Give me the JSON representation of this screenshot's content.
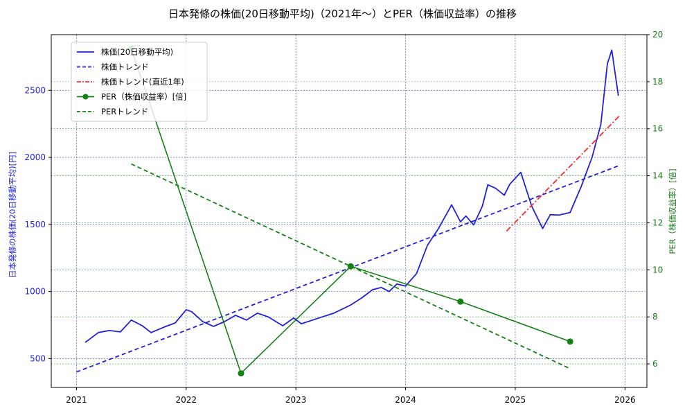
{
  "title": "日本発條の株価(20日移動平均)（2021年～）とPER（株価収益率）の推移",
  "axes": {
    "x_ticks": [
      "2021",
      "2022",
      "2023",
      "2024",
      "2025",
      "2026"
    ],
    "left_ylabel": "日本発條の株価(20日移動平均)[円]",
    "left_ticks": [
      "500",
      "1000",
      "1500",
      "2000",
      "2500"
    ],
    "right_ylabel": "PER（株価収益率）[倍]",
    "right_ticks": [
      "6",
      "8",
      "10",
      "12",
      "14",
      "16",
      "18",
      "20"
    ]
  },
  "legend": [
    {
      "label": "株価(20日移動平均)",
      "style": "solid",
      "color": "#1f1fe0"
    },
    {
      "label": "株価トレンド",
      "style": "dashed",
      "color": "#1f1fe0"
    },
    {
      "label": "株価トレンド(直近1年)",
      "style": "dashdot",
      "color": "#ff2a2a"
    },
    {
      "label": "PER（株価収益率）[倍]",
      "style": "solid-marker",
      "color": "#138013"
    },
    {
      "label": "PERトレンド",
      "style": "dashed",
      "color": "#138013"
    }
  ],
  "colors": {
    "price": "#1f1fe0",
    "price_trend": "#1f1fe0",
    "recent_trend": "#ff2a2a",
    "per": "#138013",
    "per_trend": "#138013",
    "grid_left": "#4444cc",
    "grid_right": "#3a9a3a"
  },
  "chart_data": {
    "type": "line",
    "title": "日本発條の株価(20日移動平均)（2021年～）とPER（株価収益率）の推移",
    "xlabel": "",
    "ylabel": "日本発條の株価(20日移動平均)[円]",
    "ylabel_right": "PER（株価収益率）[倍]",
    "xlim": [
      2020.77,
      2026.2
    ],
    "ylim": [
      285,
      2915
    ],
    "ylim_right": [
      5.0,
      20.0
    ],
    "grid": true,
    "legend_position": "upper left",
    "series": [
      {
        "name": "株価(20日移動平均)",
        "axis": "left",
        "x": [
          2021.08,
          2021.2,
          2021.3,
          2021.4,
          2021.5,
          2021.6,
          2021.68,
          2021.8,
          2021.9,
          2022.0,
          2022.05,
          2022.15,
          2022.25,
          2022.35,
          2022.45,
          2022.55,
          2022.65,
          2022.75,
          2022.88,
          2022.98,
          2023.05,
          2023.2,
          2023.35,
          2023.5,
          2023.6,
          2023.7,
          2023.78,
          2023.85,
          2023.92,
          2024.0,
          2024.1,
          2024.2,
          2024.3,
          2024.42,
          2024.5,
          2024.55,
          2024.62,
          2024.7,
          2024.75,
          2024.82,
          2024.9,
          2024.95,
          2025.05,
          2025.15,
          2025.25,
          2025.32,
          2025.4,
          2025.5,
          2025.6,
          2025.7,
          2025.78,
          2025.84,
          2025.88,
          2025.94
        ],
        "values": [
          621,
          694,
          709,
          699,
          787,
          745,
          694,
          735,
          766,
          864,
          850,
          776,
          740,
          776,
          823,
          787,
          839,
          810,
          745,
          802,
          760,
          800,
          840,
          900,
          952,
          1014,
          1030,
          1000,
          1056,
          1041,
          1134,
          1346,
          1470,
          1646,
          1520,
          1563,
          1496,
          1636,
          1796,
          1770,
          1718,
          1800,
          1889,
          1636,
          1470,
          1573,
          1570,
          1589,
          1781,
          2000,
          2247,
          2700,
          2800,
          2459
        ]
      },
      {
        "name": "株価トレンド",
        "axis": "left",
        "x": [
          2021.0,
          2025.95
        ],
        "values": [
          400,
          1940
        ]
      },
      {
        "name": "株価トレンド(直近1年)",
        "axis": "left",
        "x": [
          2024.92,
          2025.95
        ],
        "values": [
          1450,
          2310
        ]
      },
      {
        "name": "PER（株価収益率）[倍]",
        "axis": "right",
        "x": [
          2021.5,
          2022.5,
          2023.5,
          2024.5,
          2025.5
        ],
        "values": [
          19.4,
          5.6,
          10.15,
          8.65,
          6.95
        ]
      },
      {
        "name": "PERトレンド",
        "axis": "right",
        "x": [
          2021.5,
          2025.5
        ],
        "values": [
          14.5,
          5.8
        ]
      }
    ]
  }
}
